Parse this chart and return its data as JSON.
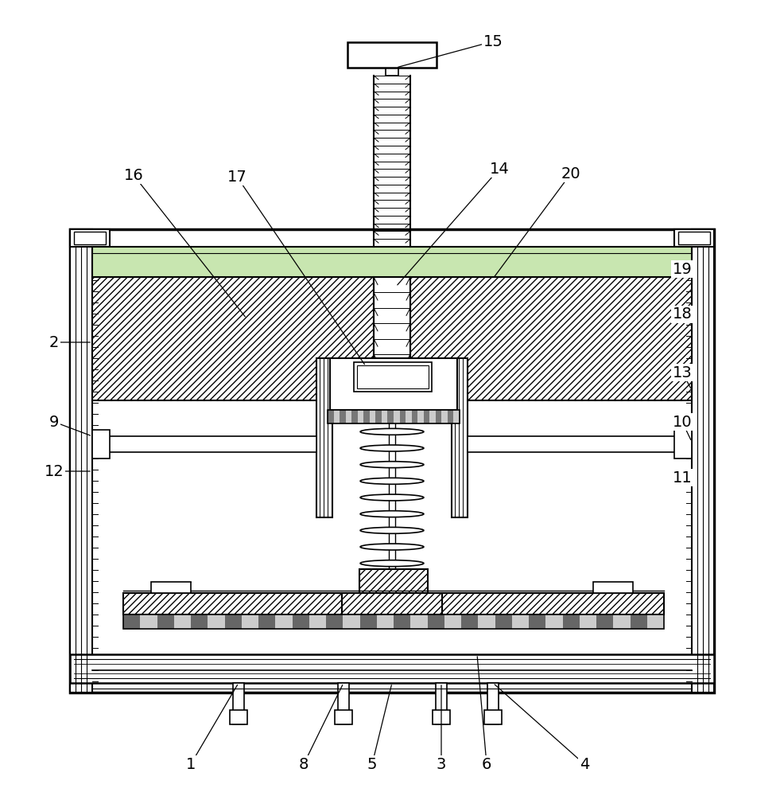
{
  "bg_color": "#ffffff",
  "line_color": "#000000",
  "figsize": [
    9.86,
    10.0
  ],
  "dpi": 100,
  "annotations": [
    [
      "1",
      240,
      960
    ],
    [
      "2",
      68,
      430
    ],
    [
      "3",
      555,
      960
    ],
    [
      "4",
      735,
      960
    ],
    [
      "5",
      468,
      960
    ],
    [
      "6",
      612,
      960
    ],
    [
      "8",
      382,
      960
    ],
    [
      "9",
      68,
      530
    ],
    [
      "10",
      858,
      530
    ],
    [
      "11",
      858,
      600
    ],
    [
      "12",
      68,
      592
    ],
    [
      "13",
      858,
      468
    ],
    [
      "14",
      628,
      212
    ],
    [
      "15",
      620,
      52
    ],
    [
      "16",
      168,
      220
    ],
    [
      "17",
      298,
      222
    ],
    [
      "18",
      858,
      395
    ],
    [
      "19",
      858,
      338
    ],
    [
      "20",
      718,
      218
    ]
  ]
}
